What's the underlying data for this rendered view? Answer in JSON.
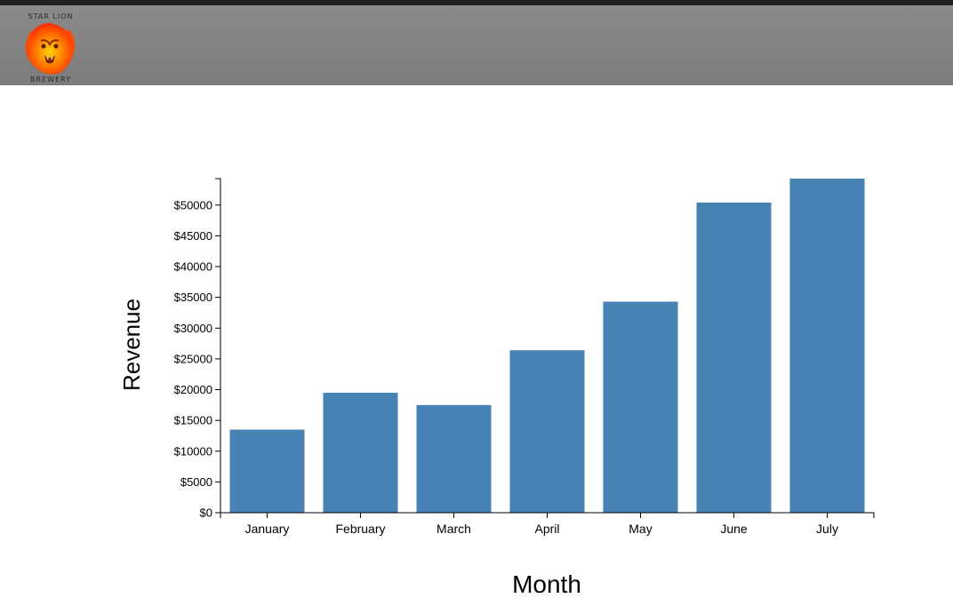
{
  "header": {
    "logo": {
      "line1": "STAR LION",
      "line2": "BREWERY",
      "icon": "lion-head-logo-icon",
      "colors": [
        "#ff2a00",
        "#ff8a00",
        "#ffd200"
      ]
    },
    "background": "#808080"
  },
  "chart_data": {
    "type": "bar",
    "title": "",
    "xlabel": "Month",
    "ylabel": "Revenue",
    "categories": [
      "January",
      "February",
      "March",
      "April",
      "May",
      "June",
      "July"
    ],
    "values": [
      13500,
      19500,
      17500,
      26400,
      34300,
      50400,
      54300
    ],
    "ylim": [
      0,
      54300
    ],
    "yticks": [
      0,
      5000,
      10000,
      15000,
      20000,
      25000,
      30000,
      35000,
      40000,
      45000,
      50000
    ],
    "ytick_labels": [
      "$0",
      "$5000",
      "$10000",
      "$15000",
      "$20000",
      "$25000",
      "$30000",
      "$35000",
      "$40000",
      "$45000",
      "$50000"
    ],
    "bar_color": "#4682b4",
    "grid": false,
    "legend": "none"
  }
}
